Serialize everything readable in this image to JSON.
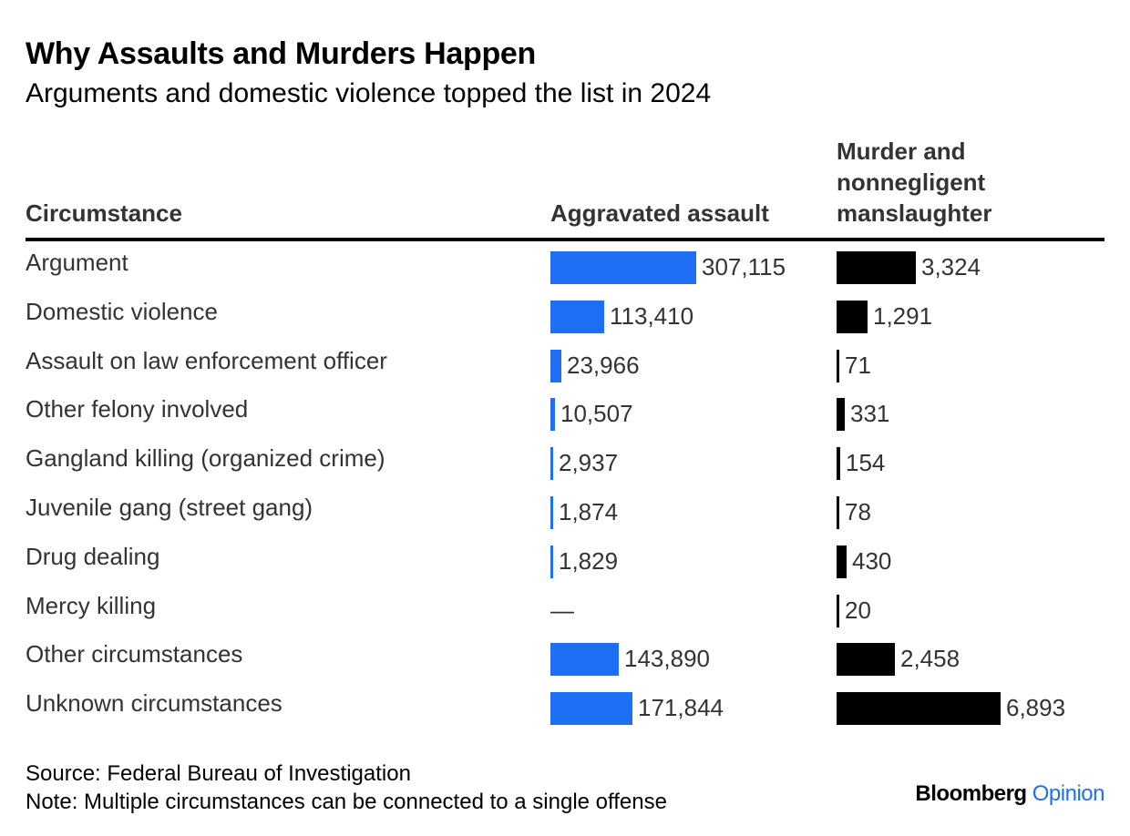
{
  "title": "Why Assaults and Murders Happen",
  "subtitle": "Arguments and domestic violence topped the list in 2024",
  "headers": {
    "circumstance": "Circumstance",
    "assault": "Aggravated assault",
    "murder": "Murder and nonnegligent manslaughter"
  },
  "colors": {
    "assault": "#1f6ff5",
    "murder": "#000000"
  },
  "chart_data": {
    "type": "table",
    "categories": [
      "Argument",
      "Domestic violence",
      "Assault on law enforcement officer",
      "Other felony involved",
      "Gangland killing (organized crime)",
      "Juvenile gang (street gang)",
      "Drug dealing",
      "Mercy killing",
      "Other circumstances",
      "Unknown circumstances"
    ],
    "series": [
      {
        "name": "Aggravated assault",
        "values": [
          307115,
          113410,
          23966,
          10507,
          2937,
          1874,
          1829,
          null,
          143890,
          171844
        ],
        "labels": [
          "307,115",
          "113,410",
          "23,966",
          "10,507",
          "2,937",
          "1,874",
          "1,829",
          "—",
          "143,890",
          "171,844"
        ]
      },
      {
        "name": "Murder and nonnegligent manslaughter",
        "values": [
          3324,
          1291,
          71,
          331,
          154,
          78,
          430,
          20,
          2458,
          6893
        ],
        "labels": [
          "3,324",
          "1,291",
          "71",
          "331",
          "154",
          "78",
          "430",
          "20",
          "2,458",
          "6,893"
        ]
      }
    ]
  },
  "footer": {
    "source": "Source: Federal Bureau of Investigation",
    "note": "Note: Multiple circumstances can be connected to a single offense",
    "brand": "Bloomberg",
    "brand_suffix": "Opinion"
  }
}
